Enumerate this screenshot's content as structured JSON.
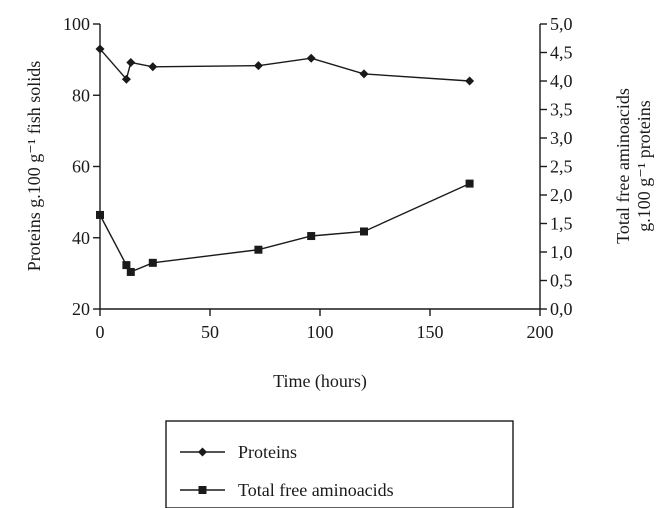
{
  "chart_data": {
    "type": "line",
    "xlabel": "Time (hours)",
    "ylabel_left": "Proteins g.100 g⁻¹ fish solids",
    "ylabel_right_line1": "Total free aminoacids",
    "ylabel_right_line2": "g.100 g⁻¹ proteins",
    "xlim": [
      0,
      200
    ],
    "ylim_left": [
      20,
      100
    ],
    "ylim_right": [
      0,
      5
    ],
    "x_ticks": [
      0,
      50,
      100,
      150,
      200
    ],
    "x_tick_labels": [
      "0",
      "50",
      "100",
      "150",
      "200"
    ],
    "y_left_ticks": [
      20,
      40,
      60,
      80,
      100
    ],
    "y_left_tick_labels": [
      "20",
      "40",
      "60",
      "80",
      "100"
    ],
    "y_right_ticks": [
      0,
      0.5,
      1,
      1.5,
      2,
      2.5,
      3,
      3.5,
      4,
      4.5,
      5
    ],
    "y_right_tick_labels": [
      "0,0",
      "0,5",
      "1,0",
      "1,5",
      "2,0",
      "2,5",
      "3,0",
      "3,5",
      "4,0",
      "4,5",
      "5,0"
    ],
    "grid": false,
    "legend_position": "bottom",
    "series": [
      {
        "name": "Proteins",
        "axis": "left",
        "marker": "diamond",
        "color": "#1a1a1a",
        "x": [
          0,
          12,
          14,
          24,
          72,
          96,
          120,
          168
        ],
        "y": [
          93.0,
          84.5,
          89.2,
          88.0,
          88.3,
          90.4,
          86.0,
          84.0
        ]
      },
      {
        "name": "Total free aminoacids",
        "axis": "right",
        "marker": "square",
        "color": "#1a1a1a",
        "x": [
          0,
          12,
          14,
          24,
          72,
          96,
          120,
          168
        ],
        "y": [
          1.65,
          0.77,
          0.65,
          0.81,
          1.04,
          1.28,
          1.36,
          2.2
        ]
      }
    ]
  }
}
